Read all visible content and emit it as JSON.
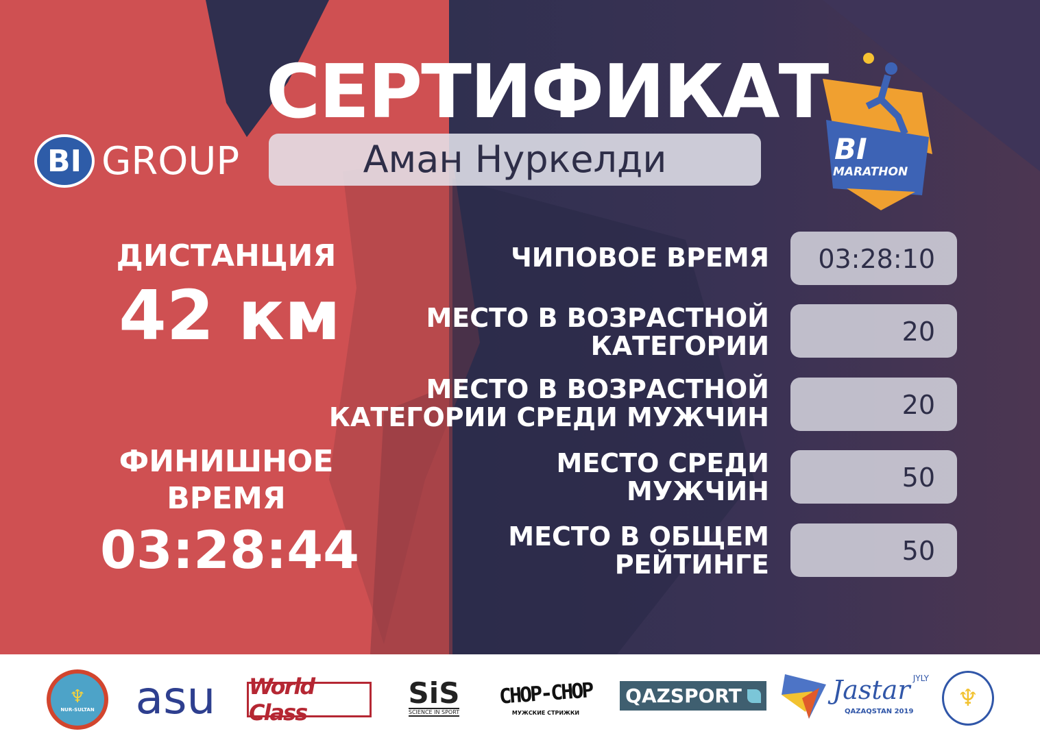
{
  "title": "СЕРТИФИКАТ",
  "brand": "BI GROUP",
  "brand_parts": {
    "mark": "BI",
    "word": "GROUP"
  },
  "participant_name": "Аман Нуркелди",
  "event_logo": {
    "mark": "BI",
    "word": "MARATHON"
  },
  "distance": {
    "label": "ДИСТАНЦИЯ",
    "value": "42 км"
  },
  "finish": {
    "label_line1": "ФИНИШНОЕ",
    "label_line2": "ВРЕМЯ",
    "value": "03:28:44"
  },
  "results": [
    {
      "line1": "ЧИПОВОЕ ВРЕМЯ",
      "line2": "",
      "value": "03:28:10"
    },
    {
      "line1": "МЕСТО В ВОЗРАСТНОЙ",
      "line2": "КАТЕГОРИИ",
      "value": "20"
    },
    {
      "line1": "МЕСТО В ВОЗРАСТНОЙ",
      "line2": "КАТЕГОРИИ СРЕДИ МУЖЧИН",
      "value": "20"
    },
    {
      "line1": "МЕСТО СРЕДИ",
      "line2": "МУЖЧИН",
      "value": "50"
    },
    {
      "line1": "МЕСТО В ОБЩЕМ",
      "line2": "РЕЙТИНГЕ",
      "value": "50"
    }
  ],
  "sponsors": {
    "nur_sultan": "NUR-SULTAN",
    "asu": "asu",
    "worldclass": "World Class",
    "sis": "SiS",
    "sis_sub": "SCIENCE IN SPORT",
    "chop": "CHOP-CHOP",
    "chop_sub": "МУЖСКИЕ СТРИЖКИ",
    "qazsport": "QAZSPORT",
    "jastar": "Jastar",
    "jastar_jyly": "JYLY",
    "jastar_sub": "QAZAQSTAN 2019"
  },
  "colors": {
    "left_bg": "#cf5052",
    "right_bg": "#303050",
    "box": "#dcdce4"
  }
}
